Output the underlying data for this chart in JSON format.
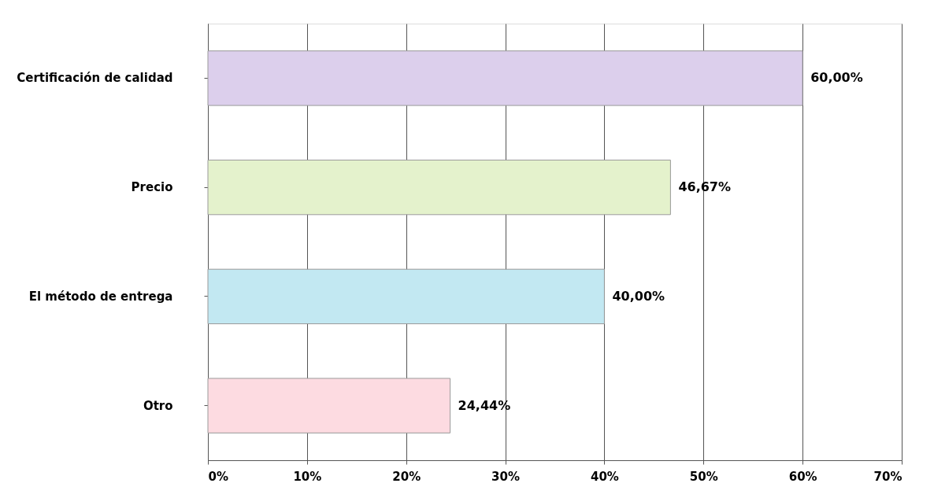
{
  "chart_data": {
    "type": "bar",
    "orientation": "horizontal",
    "categories": [
      "Certificación de calidad",
      "Precio",
      "El método de entrega",
      "Otro"
    ],
    "values": [
      60,
      46.67,
      40,
      24.44
    ],
    "colors": [
      "#dccfec",
      "#e4f2cc",
      "#c2e8f2",
      "#fddbe1"
    ],
    "value_labels": [
      "60,00%",
      "46,67%",
      "40,00%",
      "24,44%"
    ],
    "xlim": [
      0,
      70
    ],
    "xticks": [
      {
        "value": 0,
        "label": "0%"
      },
      {
        "value": 10,
        "label": "10%"
      },
      {
        "value": 20,
        "label": "20%"
      },
      {
        "value": 30,
        "label": "30%"
      },
      {
        "value": 40,
        "label": "40%"
      },
      {
        "value": 50,
        "label": "50%"
      },
      {
        "value": 60,
        "label": "60%"
      },
      {
        "value": 70,
        "label": "70%"
      }
    ],
    "grid": "x"
  }
}
